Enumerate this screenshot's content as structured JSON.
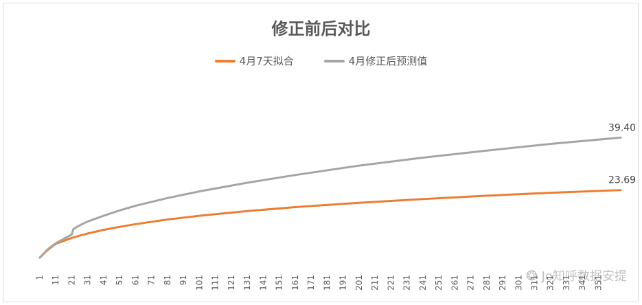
{
  "chart_data": {
    "type": "line",
    "title": "修正前后对比",
    "xlabel": "",
    "ylabel": "",
    "x_tick_labels": [
      "1",
      "11",
      "21",
      "31",
      "41",
      "51",
      "61",
      "71",
      "81",
      "91",
      "101",
      "111",
      "121",
      "131",
      "141",
      "151",
      "161",
      "171",
      "181",
      "191",
      "201",
      "211",
      "221",
      "231",
      "241",
      "251",
      "261",
      "271",
      "281",
      "291",
      "301",
      "311",
      "321",
      "331",
      "341",
      "351"
    ],
    "x_range": [
      1,
      365
    ],
    "ylim": [
      0,
      60
    ],
    "grid": false,
    "legend_position": "top",
    "series": [
      {
        "name": "4月7天拟合",
        "color": "#ED7D31",
        "points": [
          [
            1,
            3.5
          ],
          [
            6,
            5.8
          ],
          [
            11,
            7.6
          ],
          [
            21,
            9.4
          ],
          [
            31,
            10.7
          ],
          [
            41,
            11.8
          ],
          [
            51,
            12.7
          ],
          [
            61,
            13.5
          ],
          [
            81,
            14.9
          ],
          [
            101,
            16.0
          ],
          [
            131,
            17.4
          ],
          [
            161,
            18.6
          ],
          [
            201,
            19.9
          ],
          [
            241,
            21.0
          ],
          [
            281,
            22.0
          ],
          [
            321,
            22.9
          ],
          [
            365,
            23.69
          ]
        ],
        "end_label": "23.69"
      },
      {
        "name": "4月修正后预测值",
        "color": "#A5A5A5",
        "points": [
          [
            1,
            3.5
          ],
          [
            6,
            6.0
          ],
          [
            11,
            7.8
          ],
          [
            21,
            10.4
          ],
          [
            22,
            12.0
          ],
          [
            25,
            12.9
          ],
          [
            31,
            14.3
          ],
          [
            41,
            16.0
          ],
          [
            51,
            17.6
          ],
          [
            61,
            19.0
          ],
          [
            81,
            21.3
          ],
          [
            101,
            23.3
          ],
          [
            131,
            25.9
          ],
          [
            161,
            28.2
          ],
          [
            201,
            31.0
          ],
          [
            241,
            33.4
          ],
          [
            281,
            35.5
          ],
          [
            321,
            37.5
          ],
          [
            365,
            39.4
          ]
        ],
        "end_label": "39.40"
      }
    ]
  },
  "watermark": {
    "icon": "wechat-icon",
    "text": "Jo知呼数据安提"
  }
}
